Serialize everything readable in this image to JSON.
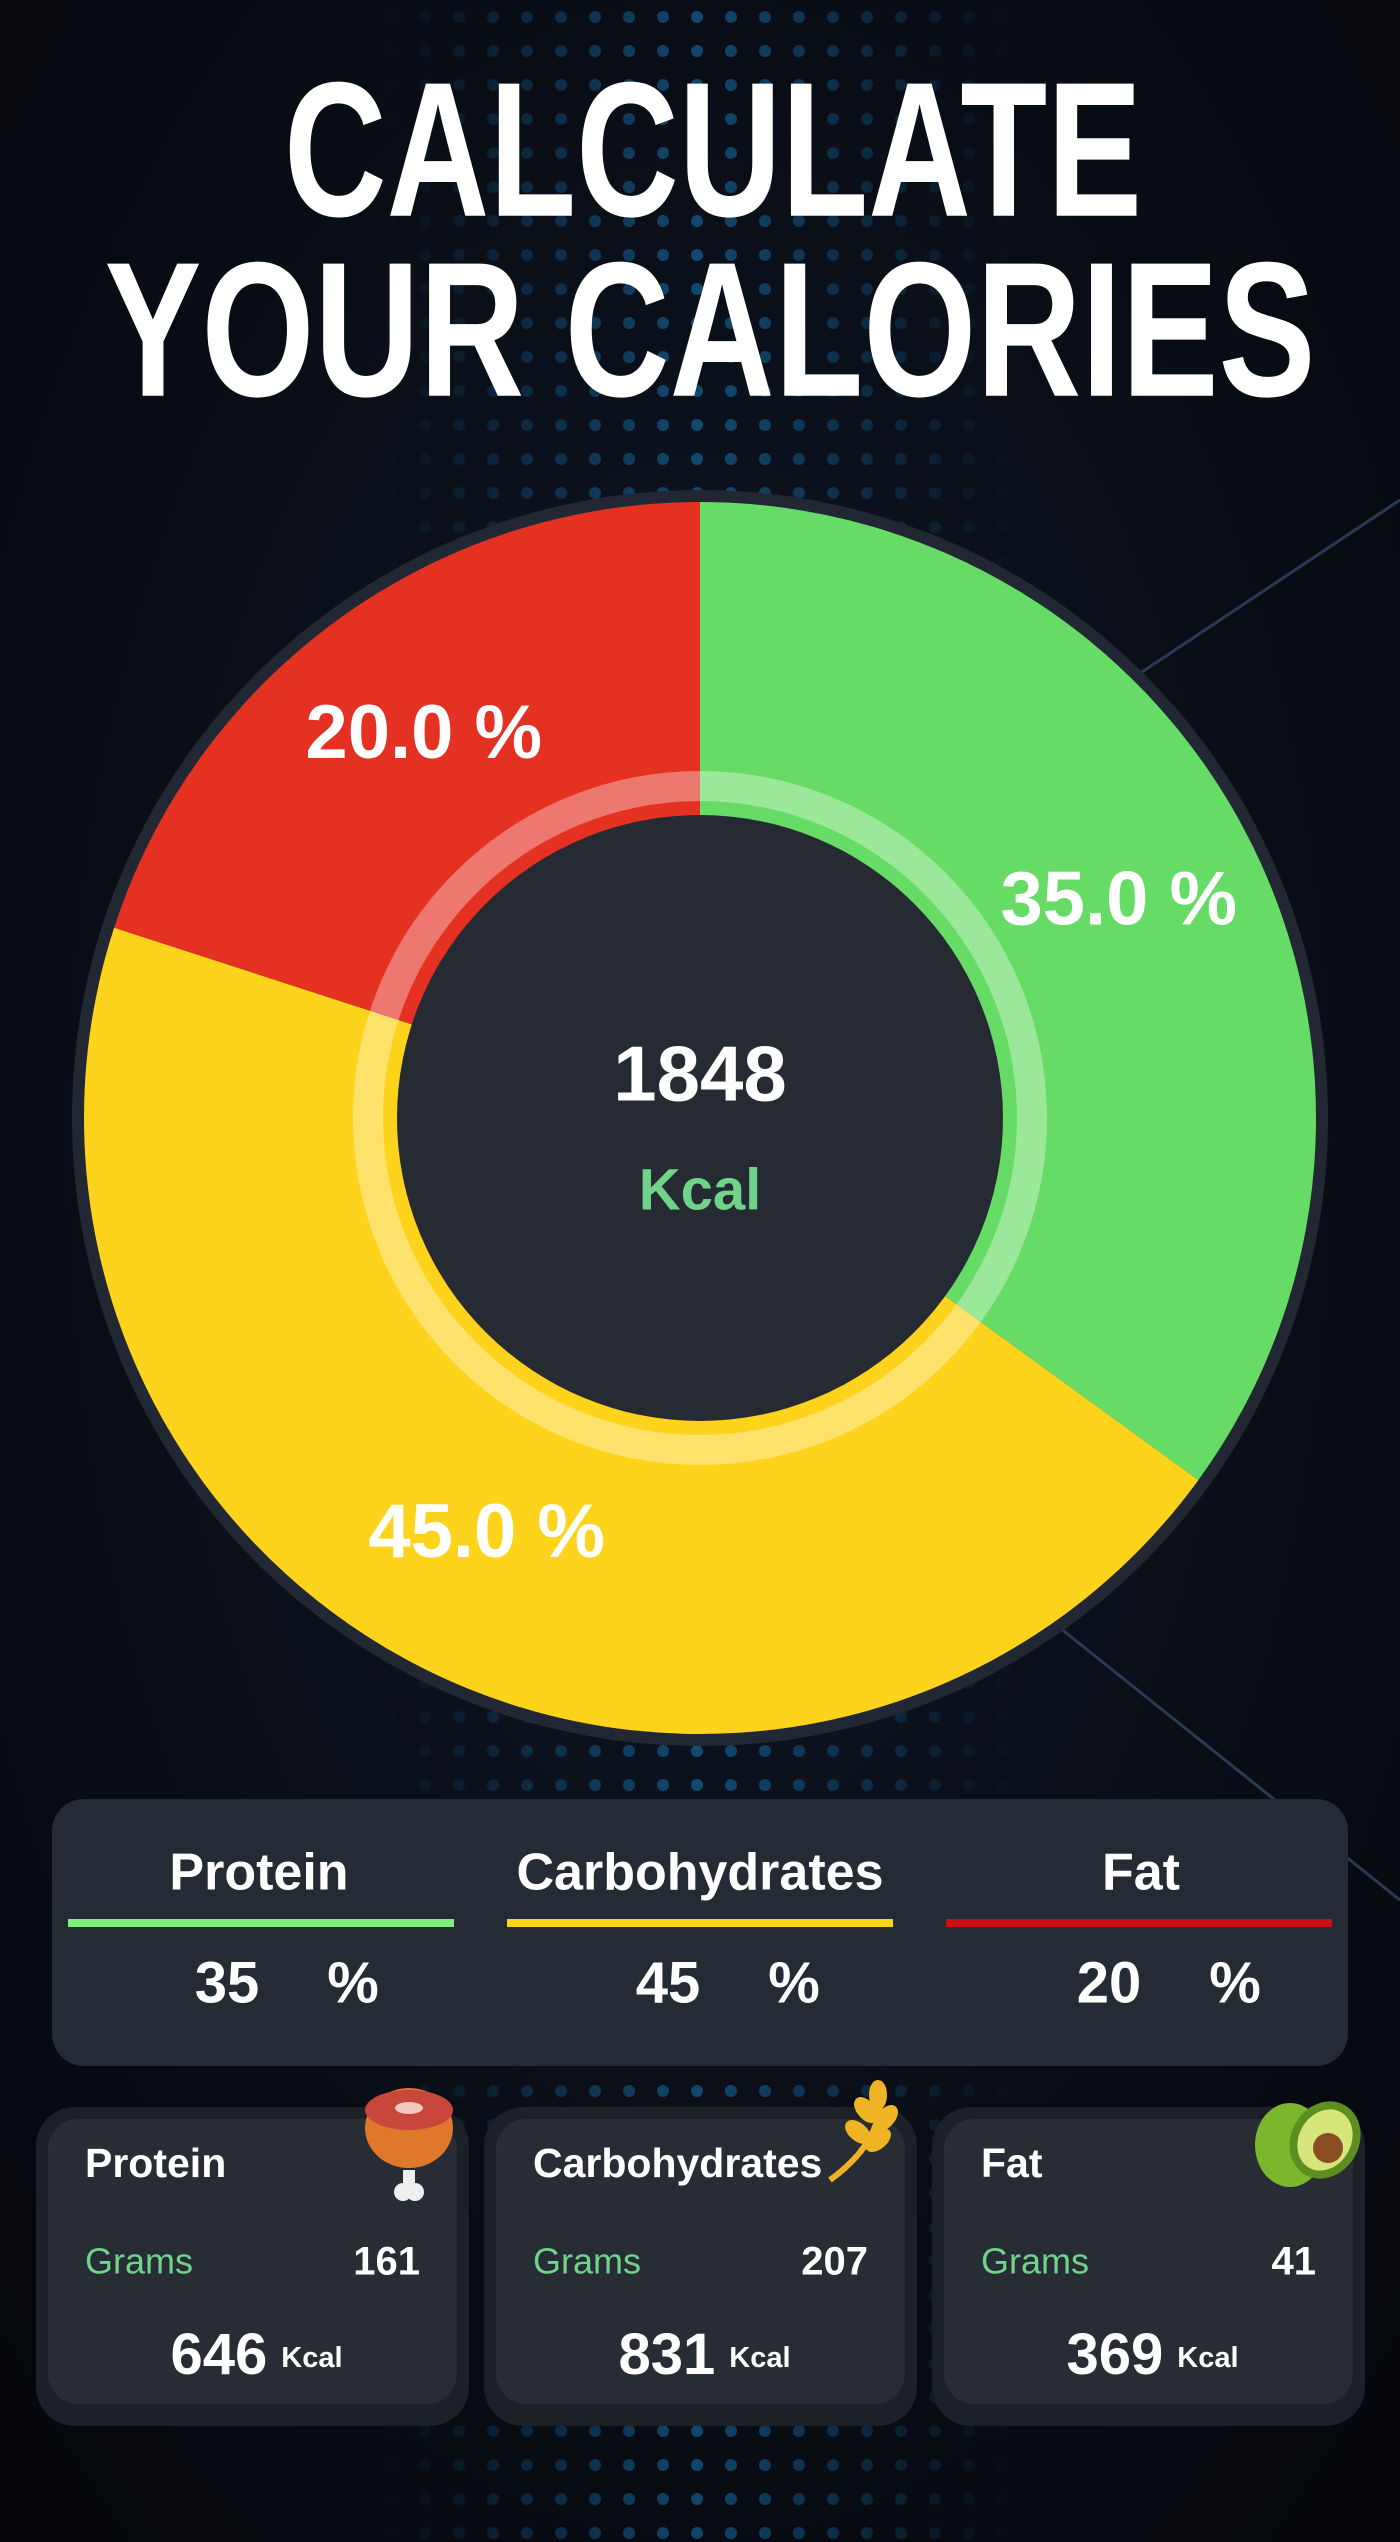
{
  "title": [
    "CALCULATE",
    "YOUR CALORIES"
  ],
  "chart_data": {
    "type": "pie",
    "values": [
      35,
      45,
      20
    ],
    "value_labels": [
      "35.0 %",
      "45.0 %",
      "20.0 %"
    ],
    "colors": [
      "#66dc66",
      "#fdd31c",
      "#e43122"
    ],
    "center_value": 1848,
    "center_unit": "Kcal"
  },
  "split": {
    "headers": [
      "Protein",
      "Carbohydrates",
      "Fat"
    ],
    "colors": [
      "#7ef07a",
      "#fdd31c",
      "#cc0f14"
    ],
    "percents": [
      35,
      45,
      20
    ],
    "unit": "%"
  },
  "cards": [
    {
      "name": "Protein",
      "grams_label": "Grams",
      "grams": 161,
      "kcal": 646,
      "kcal_unit": "Kcal"
    },
    {
      "name": "Carbohydrates",
      "grams_label": "Grams",
      "grams": 207,
      "kcal": 831,
      "kcal_unit": "Kcal"
    },
    {
      "name": "Fat",
      "grams_label": "Grams",
      "grams": 41,
      "kcal": 369,
      "kcal_unit": "Kcal"
    }
  ]
}
